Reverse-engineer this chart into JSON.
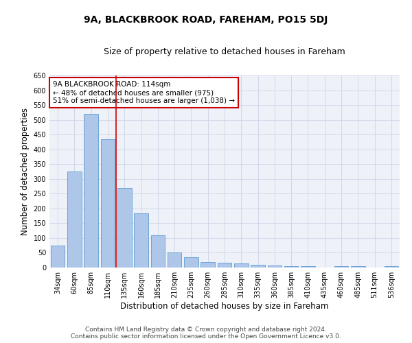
{
  "title": "9A, BLACKBROOK ROAD, FAREHAM, PO15 5DJ",
  "subtitle": "Size of property relative to detached houses in Fareham",
  "xlabel": "Distribution of detached houses by size in Fareham",
  "ylabel": "Number of detached properties",
  "categories": [
    "34sqm",
    "60sqm",
    "85sqm",
    "110sqm",
    "135sqm",
    "160sqm",
    "185sqm",
    "210sqm",
    "235sqm",
    "260sqm",
    "285sqm",
    "310sqm",
    "335sqm",
    "360sqm",
    "385sqm",
    "410sqm",
    "435sqm",
    "460sqm",
    "485sqm",
    "511sqm",
    "536sqm"
  ],
  "values": [
    75,
    325,
    520,
    435,
    270,
    183,
    110,
    50,
    35,
    18,
    17,
    13,
    9,
    8,
    5,
    5,
    0,
    5,
    5,
    0,
    5
  ],
  "bar_color": "#aec6e8",
  "bar_edge_color": "#5b9bd5",
  "grid_color": "#d0d8e8",
  "background_color": "#eef2f8",
  "vline_x": 3.5,
  "vline_color": "#cc0000",
  "annotation_text": "9A BLACKBROOK ROAD: 114sqm\n← 48% of detached houses are smaller (975)\n51% of semi-detached houses are larger (1,038) →",
  "annotation_box_color": "#ffffff",
  "annotation_box_edge_color": "#cc0000",
  "ylim": [
    0,
    650
  ],
  "yticks": [
    0,
    50,
    100,
    150,
    200,
    250,
    300,
    350,
    400,
    450,
    500,
    550,
    600,
    650
  ],
  "footer_line1": "Contains HM Land Registry data © Crown copyright and database right 2024.",
  "footer_line2": "Contains public sector information licensed under the Open Government Licence v3.0.",
  "title_fontsize": 10,
  "subtitle_fontsize": 9,
  "xlabel_fontsize": 8.5,
  "ylabel_fontsize": 8.5,
  "tick_fontsize": 7,
  "footer_fontsize": 6.5
}
